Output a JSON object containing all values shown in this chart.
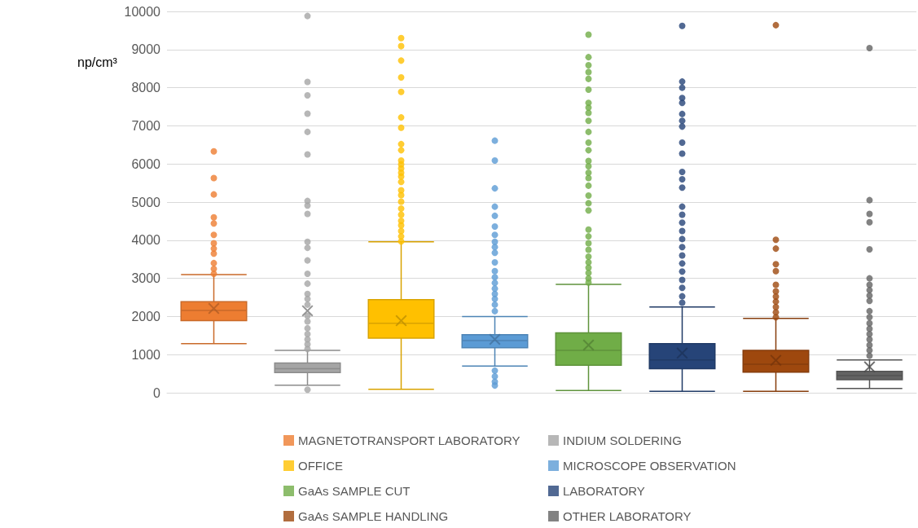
{
  "chart_data": {
    "type": "box",
    "ylabel": "np/cm³",
    "categories": [
      null
    ],
    "ylim": [
      0,
      10000
    ],
    "yticks": [
      0,
      1000,
      2000,
      3000,
      4000,
      5000,
      6000,
      7000,
      8000,
      9000,
      10000
    ],
    "grid": "y",
    "legend": "bottom",
    "marker": "circle",
    "series": [
      {
        "name": "MAGNETOTRANSPORT LABORATORY",
        "color": "#ed7d31",
        "boxes": [
          {
            "low": 1290,
            "q1": 1890,
            "median": 2160,
            "q3": 2390,
            "high": 3100,
            "mean": 2210,
            "outliers": [
              6330,
              5630,
              5200,
              4600,
              4440,
              4140,
              3920,
              3780,
              3650,
              3400,
              3250,
              3120
            ]
          }
        ]
      },
      {
        "name": "INDIUM SOLDERING",
        "color": "#a5a5a5",
        "boxes": [
          {
            "low": 200,
            "q1": 530,
            "median": 630,
            "q3": 780,
            "high": 1110,
            "mean": 2150,
            "outliers": [
              9880,
              8150,
              7800,
              7320,
              6840,
              6250,
              5030,
              4910,
              4690,
              3960,
              3800,
              3470,
              3120,
              2860,
              2590,
              2460,
              2310,
              2020,
              1870,
              1690,
              1540,
              1400,
              1270,
              1150,
              80
            ]
          }
        ]
      },
      {
        "name": "OFFICE",
        "color": "#ffc000",
        "boxes": [
          {
            "low": 90,
            "q1": 1430,
            "median": 1820,
            "q3": 2440,
            "high": 3960,
            "mean": 1890,
            "outliers": [
              9300,
              9090,
              8710,
              8270,
              7890,
              7220,
              6950,
              6520,
              6360,
              6090,
              5990,
              5880,
              5770,
              5670,
              5530,
              5310,
              5180,
              5010,
              4830,
              4670,
              4510,
              4390,
              4240,
              4100,
              3970
            ]
          }
        ]
      },
      {
        "name": "MICROSCOPE OBSERVATION",
        "color": "#5b9bd5",
        "boxes": [
          {
            "low": 700,
            "q1": 1180,
            "median": 1370,
            "q3": 1520,
            "high": 2000,
            "mean": 1400,
            "outliers": [
              6610,
              6090,
              5360,
              4880,
              4640,
              4360,
              4140,
              3960,
              3820,
              3670,
              3420,
              3190,
              3030,
              2880,
              2730,
              2590,
              2460,
              2310,
              2140,
              580,
              430,
              290,
              190
            ]
          }
        ]
      },
      {
        "name": "GaAs SAMPLE CUT",
        "color": "#70ad47",
        "boxes": [
          {
            "low": 60,
            "q1": 720,
            "median": 1110,
            "q3": 1570,
            "high": 2840,
            "mean": 1250,
            "outliers": [
              9390,
              8800,
              8590,
              8410,
              8230,
              7950,
              7600,
              7480,
              7340,
              7130,
              6840,
              6560,
              6360,
              6080,
              5940,
              5770,
              5630,
              5430,
              5170,
              4970,
              4780,
              4280,
              4100,
              3920,
              3750,
              3570,
              3420,
              3280,
              3140,
              3000,
              2890
            ]
          }
        ]
      },
      {
        "name": "LABORATORY",
        "color": "#264478",
        "boxes": [
          {
            "low": 40,
            "q1": 630,
            "median": 860,
            "q3": 1290,
            "high": 2250,
            "mean": 1040,
            "outliers": [
              9620,
              8160,
              8000,
              7730,
              7600,
              7310,
              7130,
              6980,
              6560,
              6270,
              5790,
              5600,
              5380,
              4880,
              4670,
              4460,
              4240,
              4030,
              3820,
              3600,
              3390,
              3180,
              2960,
              2750,
              2530,
              2360
            ]
          }
        ]
      },
      {
        "name": "GaAs SAMPLE HANDLING",
        "color": "#9e480e",
        "boxes": [
          {
            "low": 40,
            "q1": 540,
            "median": 750,
            "q3": 1110,
            "high": 1950,
            "mean": 850,
            "outliers": [
              9640,
              4010,
              3780,
              3370,
              3190,
              2830,
              2660,
              2520,
              2390,
              2250,
              2110,
              1980
            ]
          }
        ]
      },
      {
        "name": "OTHER LABORATORY",
        "color": "#636363",
        "boxes": [
          {
            "low": 110,
            "q1": 340,
            "median": 450,
            "q3": 560,
            "high": 860,
            "mean": 680,
            "outliers": [
              9040,
              5050,
              4690,
              4470,
              3760,
              3000,
              2830,
              2690,
              2550,
              2410,
              2140,
              1980,
              1820,
              1680,
              1540,
              1400,
              1250,
              1110,
              970
            ]
          }
        ]
      }
    ]
  }
}
